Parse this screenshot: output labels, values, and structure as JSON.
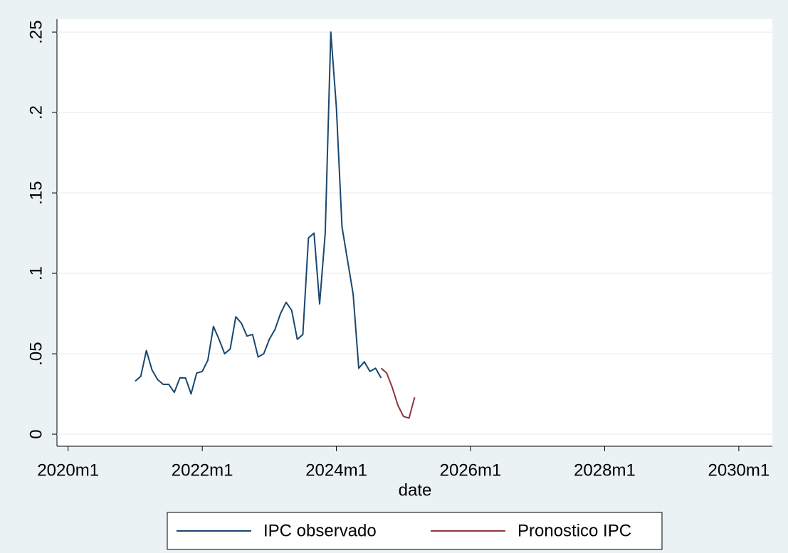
{
  "chart_data": {
    "type": "line",
    "x_label": "date",
    "xlim": [
      "2019m11",
      "2030m7"
    ],
    "xticks": [
      "2020m1",
      "2022m1",
      "2024m1",
      "2026m1",
      "2028m1",
      "2030m1"
    ],
    "ylim": [
      -0.0075,
      0.258
    ],
    "yticks": [
      0,
      {
        "value": 0.05,
        "label": ".05"
      },
      {
        "value": 0.1,
        "label": ".1"
      },
      {
        "value": 0.15,
        "label": ".15"
      },
      {
        "value": 0.2,
        "label": ".2"
      },
      {
        "value": 0.25,
        "label": ".25"
      }
    ],
    "grid": true,
    "series": [
      {
        "name": "IPC observado",
        "color": "#1a476f",
        "x": [
          "2021m1",
          "2021m2",
          "2021m3",
          "2021m4",
          "2021m5",
          "2021m6",
          "2021m7",
          "2021m8",
          "2021m9",
          "2021m10",
          "2021m11",
          "2021m12",
          "2022m1",
          "2022m2",
          "2022m3",
          "2022m4",
          "2022m5",
          "2022m6",
          "2022m7",
          "2022m8",
          "2022m9",
          "2022m10",
          "2022m11",
          "2022m12",
          "2023m1",
          "2023m2",
          "2023m3",
          "2023m4",
          "2023m5",
          "2023m6",
          "2023m7",
          "2023m8",
          "2023m9",
          "2023m10",
          "2023m11",
          "2023m12",
          "2024m1",
          "2024m2",
          "2024m3",
          "2024m4",
          "2024m5",
          "2024m6",
          "2024m7",
          "2024m8",
          "2024m9"
        ],
        "values": [
          0.033,
          0.036,
          0.052,
          0.04,
          0.034,
          0.031,
          0.031,
          0.026,
          0.035,
          0.035,
          0.025,
          0.038,
          0.039,
          0.046,
          0.067,
          0.059,
          0.05,
          0.053,
          0.073,
          0.069,
          0.061,
          0.062,
          0.048,
          0.05,
          0.059,
          0.065,
          0.075,
          0.082,
          0.077,
          0.059,
          0.062,
          0.122,
          0.125,
          0.081,
          0.125,
          0.25,
          0.203,
          0.129,
          0.108,
          0.087,
          0.041,
          0.045,
          0.039,
          0.041,
          0.035
        ]
      },
      {
        "name": "Pronostico IPC",
        "color": "#90353b",
        "x": [
          "2024m9",
          "2024m10",
          "2024m11",
          "2024m12",
          "2025m1",
          "2025m2",
          "2025m3"
        ],
        "values": [
          0.041,
          0.038,
          0.029,
          0.018,
          0.011,
          0.01,
          0.023
        ]
      }
    ]
  }
}
